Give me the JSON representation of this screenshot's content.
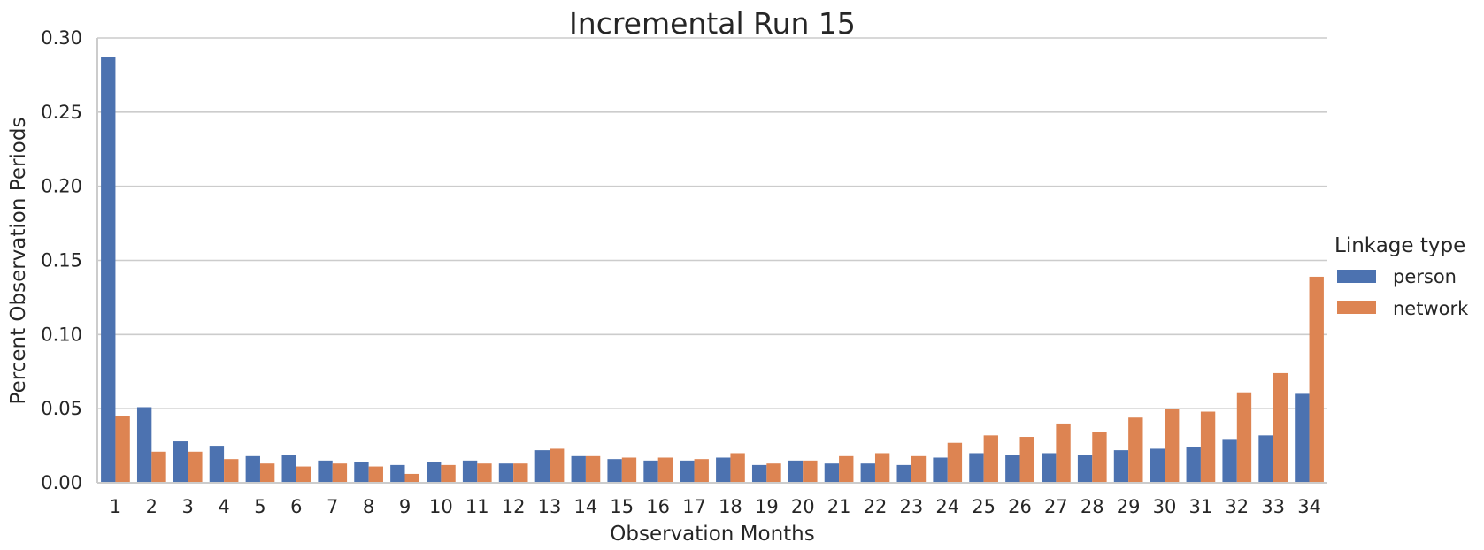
{
  "chart_data": {
    "type": "bar",
    "title": "Incremental Run 15",
    "xlabel": "Observation Months",
    "ylabel": "Percent Observation Periods",
    "categories": [
      "1",
      "2",
      "3",
      "4",
      "5",
      "6",
      "7",
      "8",
      "9",
      "10",
      "11",
      "12",
      "13",
      "14",
      "15",
      "16",
      "17",
      "18",
      "19",
      "20",
      "21",
      "22",
      "23",
      "24",
      "25",
      "26",
      "27",
      "28",
      "29",
      "30",
      "31",
      "32",
      "33",
      "34"
    ],
    "series": [
      {
        "name": "person",
        "color": "#4c72b0",
        "values": [
          0.287,
          0.051,
          0.028,
          0.025,
          0.018,
          0.019,
          0.015,
          0.014,
          0.012,
          0.014,
          0.015,
          0.013,
          0.022,
          0.018,
          0.016,
          0.015,
          0.015,
          0.017,
          0.012,
          0.015,
          0.013,
          0.013,
          0.012,
          0.017,
          0.02,
          0.019,
          0.02,
          0.019,
          0.022,
          0.023,
          0.024,
          0.029,
          0.032,
          0.06
        ]
      },
      {
        "name": "network",
        "color": "#dd8452",
        "values": [
          0.045,
          0.021,
          0.021,
          0.016,
          0.013,
          0.011,
          0.013,
          0.011,
          0.006,
          0.012,
          0.013,
          0.013,
          0.023,
          0.018,
          0.017,
          0.017,
          0.016,
          0.02,
          0.013,
          0.015,
          0.018,
          0.02,
          0.018,
          0.027,
          0.032,
          0.031,
          0.04,
          0.034,
          0.044,
          0.05,
          0.048,
          0.061,
          0.074,
          0.139
        ]
      }
    ],
    "ylim": [
      0,
      0.3
    ],
    "yticks": [
      "0.00",
      "0.05",
      "0.10",
      "0.15",
      "0.20",
      "0.25",
      "0.30"
    ],
    "grid": "horizontal",
    "legend": {
      "title": "Linkage type",
      "placement": "right"
    }
  }
}
